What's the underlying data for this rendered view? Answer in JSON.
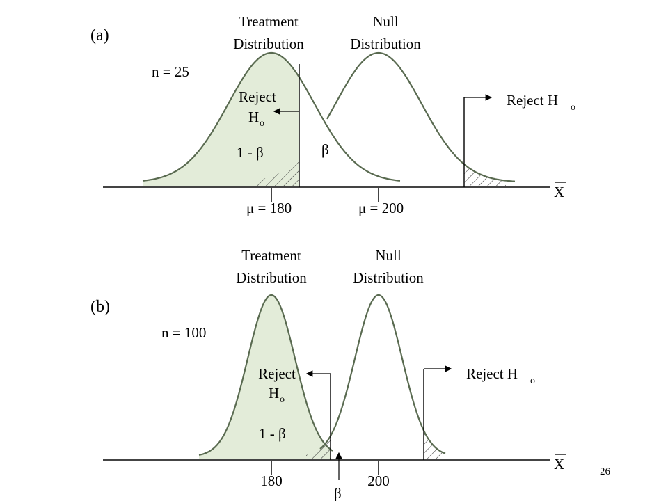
{
  "slide_number": "26",
  "panel_a": {
    "label": "(a)",
    "treatment_title_line1": "Treatment",
    "treatment_title_line2": "Distribution",
    "null_title_line1": "Null",
    "null_title_line2": "Distribution",
    "sample_size": "n = 25",
    "reject_left_line1": "Reject",
    "reject_left_line2": "H",
    "reject_left_sub": "o",
    "power_label": "1 - β",
    "beta_label": "β",
    "reject_right": "Reject H",
    "reject_right_sub": "o",
    "axis_label": "X",
    "mu_treatment_label": "μ = 180",
    "mu_null_label": "μ = 200"
  },
  "panel_b": {
    "label": "(b)",
    "treatment_title_line1": "Treatment",
    "treatment_title_line2": "Distribution",
    "null_title_line1": "Null",
    "null_title_line2": "Distribution",
    "sample_size": "n = 100",
    "reject_left_line1": "Reject",
    "reject_left_line2": "H",
    "reject_left_sub": "o",
    "power_label": "1 - β",
    "beta_label": "β",
    "reject_right": "Reject H",
    "reject_right_sub": "o",
    "axis_label": "X",
    "mu_treatment_label": "180",
    "mu_null_label": "200"
  },
  "colors": {
    "treatment_fill": "#e3ecd9",
    "curve_stroke": "#596a50"
  }
}
